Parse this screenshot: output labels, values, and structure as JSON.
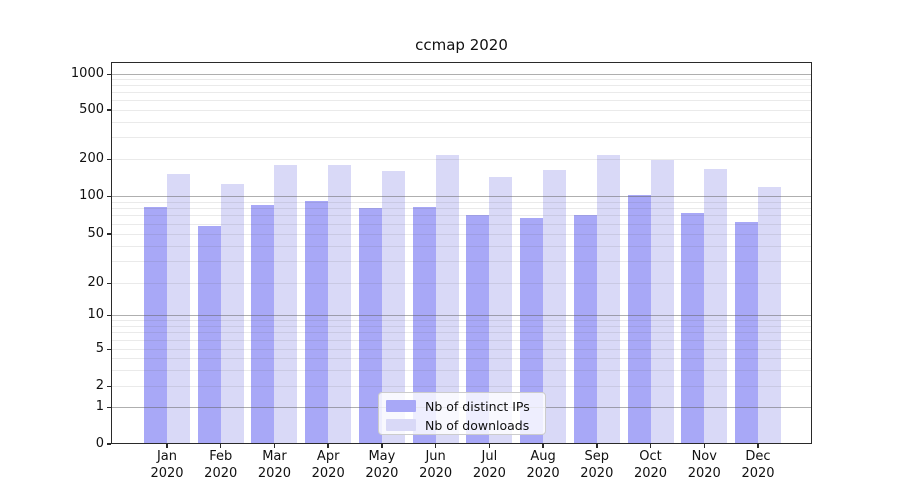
{
  "figure": {
    "background": "#ffffff"
  },
  "chart_data": {
    "type": "bar",
    "title": "ccmap 2020",
    "categories": [
      "Jan 2020",
      "Feb 2020",
      "Mar 2020",
      "Apr 2020",
      "May 2020",
      "Jun 2020",
      "Jul 2020",
      "Aug 2020",
      "Sep 2020",
      "Oct 2020",
      "Nov 2020",
      "Dec 2020"
    ],
    "month_labels": [
      "Jan",
      "Feb",
      "Mar",
      "Apr",
      "May",
      "Jun",
      "Jul",
      "Aug",
      "Sep",
      "Oct",
      "Nov",
      "Dec"
    ],
    "year_label": "2020",
    "series": [
      {
        "name": "Nb of distinct IPs",
        "color": "#a8a8f7",
        "values": [
          82,
          57,
          84,
          92,
          80,
          81,
          70,
          67,
          71,
          101,
          73,
          62
        ]
      },
      {
        "name": "Nb of downloads",
        "color": "#d9d9f7",
        "values": [
          151,
          125,
          178,
          180,
          160,
          214,
          143,
          163,
          216,
          198,
          166,
          118
        ]
      }
    ],
    "yscale": "symlog (log above 1, linear segment to 0 baseline)",
    "y_ticks": [
      1000,
      500,
      200,
      100,
      50,
      20,
      10,
      5,
      2,
      1,
      0
    ],
    "ylim": [
      0,
      1300
    ],
    "grid": "horizontal, major decade lines darker, minor log subdivisions lighter",
    "legend_position": "lower center inside axes",
    "xlabel": "",
    "ylabel": ""
  },
  "colors": {
    "bar_ips": "#a8a8f7",
    "bar_downloads": "#d9d9f7",
    "grid_major": "rgba(95,95,95,0.50)",
    "grid_minor": "rgba(95,95,95,0.13)",
    "spine": "#2a2a2a",
    "text": "#1a1a1a",
    "legend_border": "#cccccc",
    "legend_bg": "rgba(255,255,255,0.8)"
  }
}
